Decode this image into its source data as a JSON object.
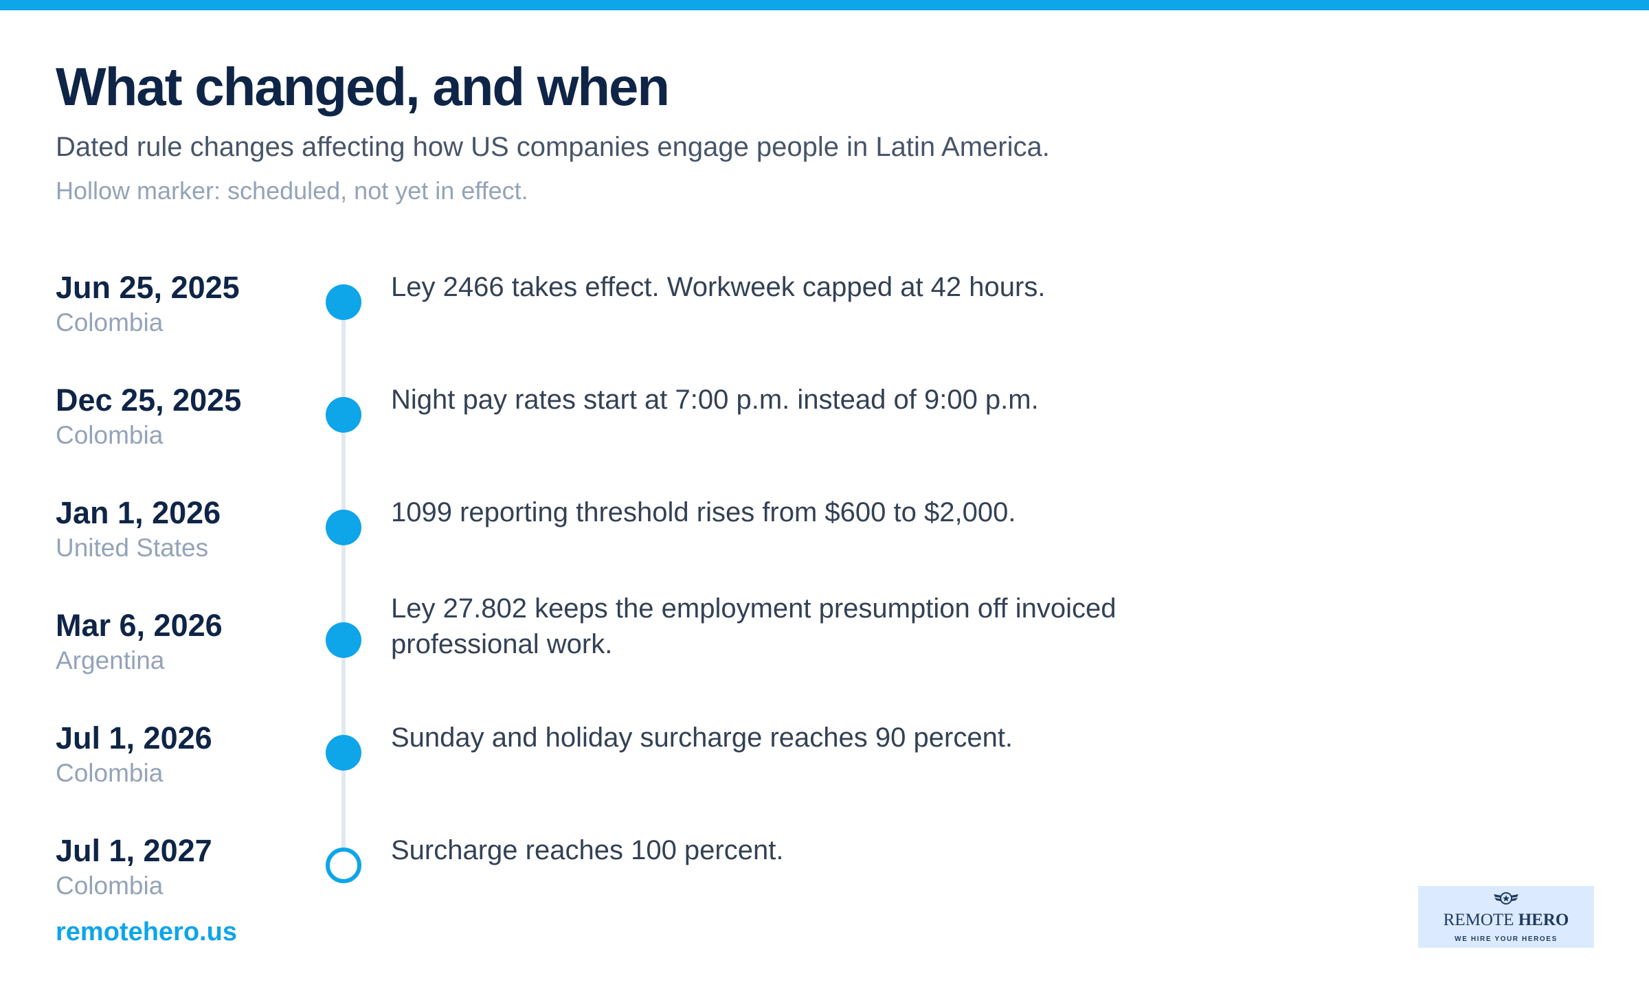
{
  "header": {
    "title": "What changed, and when",
    "subtitle": "Dated rule changes affecting how US companies engage people in Latin America.",
    "note": "Hollow marker: scheduled, not yet in effect."
  },
  "events": [
    {
      "date": "Jun 25, 2025",
      "country": "Colombia",
      "description": "Ley 2466 takes effect. Workweek capped at 42 hours.",
      "status": "in-effect"
    },
    {
      "date": "Dec 25, 2025",
      "country": "Colombia",
      "description": "Night pay rates start at 7:00 p.m. instead of 9:00 p.m.",
      "status": "in-effect"
    },
    {
      "date": "Jan 1, 2026",
      "country": "United States",
      "description": "1099 reporting threshold rises from $600 to $2,000.",
      "status": "in-effect"
    },
    {
      "date": "Mar 6, 2026",
      "country": "Argentina",
      "description": "Ley 27.802 keeps the employment presumption off invoiced professional work.",
      "status": "in-effect"
    },
    {
      "date": "Jul 1, 2026",
      "country": "Colombia",
      "description": "Sunday and holiday surcharge reaches 90 percent.",
      "status": "in-effect"
    },
    {
      "date": "Jul 1, 2027",
      "country": "Colombia",
      "description": "Surcharge reaches 100 percent.",
      "status": "scheduled"
    }
  ],
  "footer": {
    "site": "remotehero.us",
    "logo": {
      "word_light": "REMOTE ",
      "word_bold": "HERO",
      "tagline": "WE HIRE YOUR HEROES"
    }
  },
  "colors": {
    "accent": "#0ea5e9",
    "title": "#0f2547",
    "muted": "#94a3b8",
    "line": "#e2e8f0"
  }
}
